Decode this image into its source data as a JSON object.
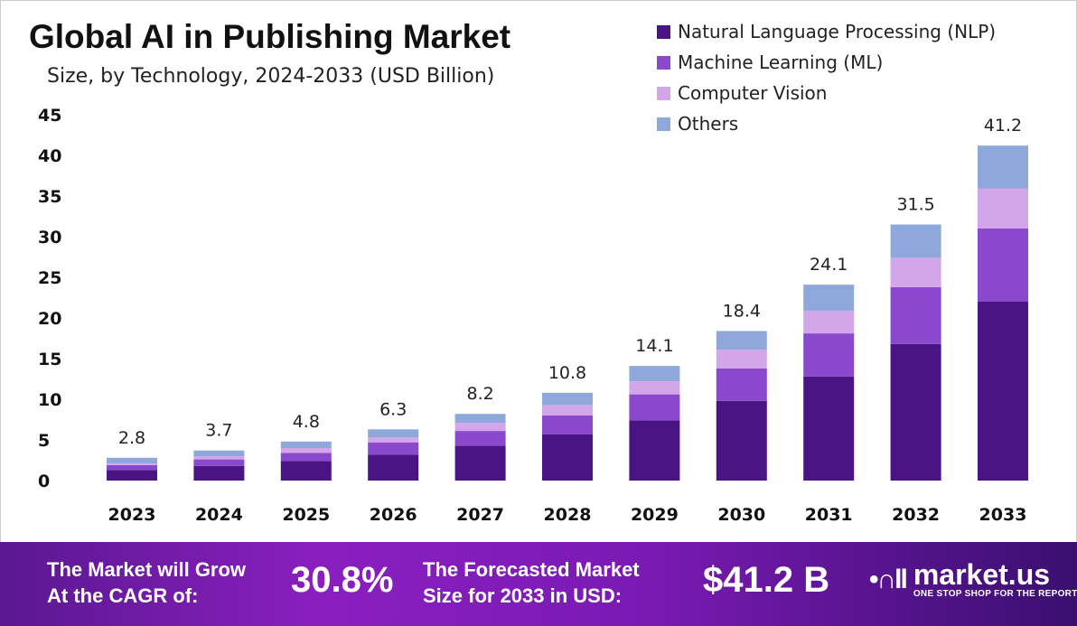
{
  "chart_data": {
    "type": "bar",
    "stacked": true,
    "title": "Global AI in Publishing Market",
    "subtitle": "Size, by Technology, 2024-2033 (USD Billion)",
    "xlabel": "",
    "ylabel": "",
    "ylim": [
      0,
      45
    ],
    "yticks": [
      0,
      5,
      10,
      15,
      20,
      25,
      30,
      35,
      40,
      45
    ],
    "grid": false,
    "legend_position": "top-right",
    "categories": [
      "2023",
      "2024",
      "2025",
      "2026",
      "2027",
      "2028",
      "2029",
      "2030",
      "2031",
      "2032",
      "2033"
    ],
    "series": [
      {
        "name": "Natural Language Processing (NLP)",
        "color": "#4a1484",
        "values": [
          1.3,
          1.8,
          2.4,
          3.2,
          4.3,
          5.7,
          7.4,
          9.8,
          12.8,
          16.8,
          22.0
        ]
      },
      {
        "name": "Machine Learning (ML)",
        "color": "#8a48cc",
        "values": [
          0.6,
          0.8,
          1.0,
          1.5,
          1.8,
          2.3,
          3.2,
          4.0,
          5.3,
          7.0,
          9.0
        ]
      },
      {
        "name": "Computer Vision",
        "color": "#d3a6ea",
        "values": [
          0.2,
          0.4,
          0.6,
          0.6,
          1.0,
          1.3,
          1.6,
          2.3,
          2.8,
          3.6,
          4.9
        ]
      },
      {
        "name": "Others",
        "color": "#8fa8dc",
        "values": [
          0.7,
          0.7,
          0.8,
          1.0,
          1.1,
          1.5,
          1.9,
          2.3,
          3.2,
          4.1,
          5.3
        ]
      }
    ],
    "totals": [
      "2.8",
      "3.7",
      "4.8",
      "6.3",
      "8.2",
      "10.8",
      "14.1",
      "18.4",
      "24.1",
      "31.5",
      "41.2"
    ]
  },
  "footer": {
    "cagr_label_1": "The Market will Grow",
    "cagr_label_2": "At the CAGR of:",
    "cagr_value": "30.8%",
    "forecast_label_1": "The Forecasted Market",
    "forecast_label_2": "Size for 2033 in USD:",
    "forecast_value": "$41.2 B",
    "logo_name": "market.us",
    "logo_tagline": "ONE STOP SHOP FOR THE REPORTS"
  }
}
